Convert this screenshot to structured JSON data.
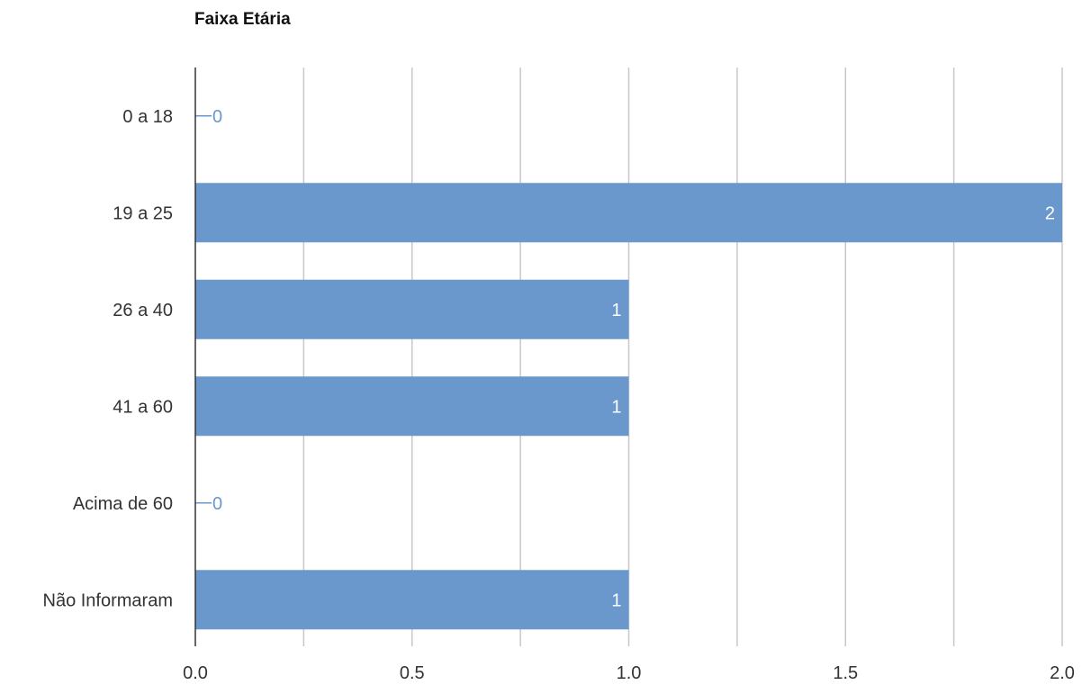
{
  "chart_data": {
    "type": "bar",
    "orientation": "horizontal",
    "title": "Faixa Etária",
    "categories": [
      "0 a 18",
      "19 a 25",
      "26 a 40",
      "41 a 60",
      "Acima de 60",
      "Não Informaram"
    ],
    "values": [
      0,
      2,
      1,
      1,
      0,
      1
    ],
    "value_labels": [
      "0",
      "2",
      "1",
      "1",
      "0",
      "1"
    ],
    "xlim": [
      0,
      2
    ],
    "x_ticks": [
      0,
      0.25,
      0.5,
      0.75,
      1,
      1.25,
      1.5,
      1.75,
      2
    ],
    "x_tick_labels": [
      "0.0",
      "",
      "0.5",
      "",
      "1.0",
      "",
      "1.5",
      "",
      "2.0"
    ],
    "grid": true,
    "bar_color": "#6a98cc",
    "grid_color": "#c8c8c8",
    "axis_color": "#333333"
  }
}
